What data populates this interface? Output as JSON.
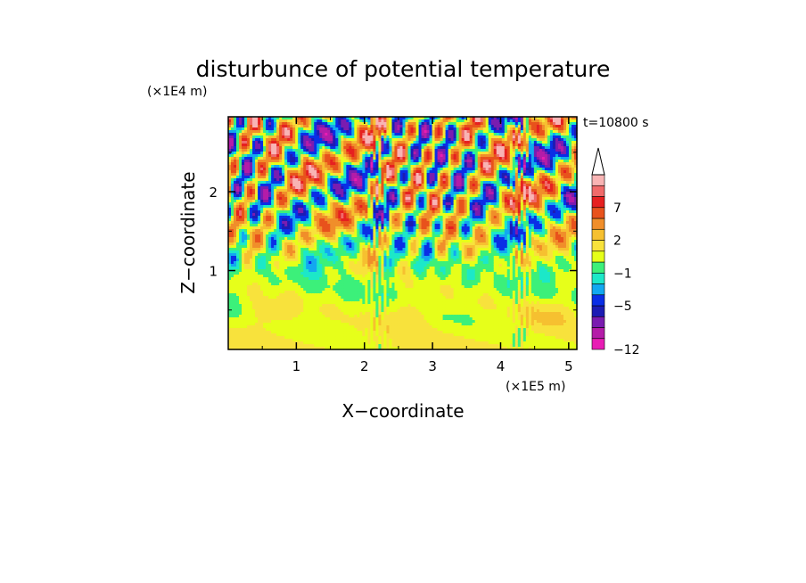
{
  "chart_data": {
    "type": "heatmap",
    "title": "disturbunce of potential temperature",
    "xlabel": "X−coordinate",
    "ylabel": "Z−coordinate",
    "x_scale_label": "(×1E5 m)",
    "y_scale_label": "(×1E4 m)",
    "time_label": "t=10800 s",
    "xlim": [
      0,
      5.12
    ],
    "ylim": [
      0,
      2.95
    ],
    "x_ticks": [
      {
        "value": 1,
        "label": "1"
      },
      {
        "value": 2,
        "label": "2"
      },
      {
        "value": 3,
        "label": "3"
      },
      {
        "value": 4,
        "label": "4"
      },
      {
        "value": 5,
        "label": "5"
      }
    ],
    "y_ticks": [
      {
        "value": 1,
        "label": "1"
      },
      {
        "value": 2,
        "label": "2"
      }
    ],
    "colorbar": {
      "levels": [
        {
          "lo": -12,
          "hi": -10,
          "color": "#e81cb4"
        },
        {
          "lo": -10,
          "hi": -8,
          "color": "#b41ca8"
        },
        {
          "lo": -8,
          "hi": -6,
          "color": "#7a1cb0"
        },
        {
          "lo": -6,
          "hi": -5,
          "color": "#1c1cb4"
        },
        {
          "lo": -5,
          "hi": -3,
          "color": "#0a2ee6"
        },
        {
          "lo": -3,
          "hi": -2,
          "color": "#12a8f0"
        },
        {
          "lo": -2,
          "hi": -1,
          "color": "#1ce8c8"
        },
        {
          "lo": -1,
          "hi": 0,
          "color": "#3cf07a"
        },
        {
          "lo": 0,
          "hi": 1,
          "color": "#e6ff1a"
        },
        {
          "lo": 1,
          "hi": 2,
          "color": "#f8e23c"
        },
        {
          "lo": 2,
          "hi": 3,
          "color": "#f6c030"
        },
        {
          "lo": 3,
          "hi": 5,
          "color": "#f08e2a"
        },
        {
          "lo": 5,
          "hi": 7,
          "color": "#e8521c"
        },
        {
          "lo": 7,
          "hi": 8,
          "color": "#e62020"
        },
        {
          "lo": 8,
          "hi": 9,
          "color": "#f06a6a"
        },
        {
          "lo": 9,
          "hi": 10,
          "color": "#f8b4b4"
        }
      ],
      "extend": "max",
      "tick_labels": [
        "7",
        "2",
        "−1",
        "−5",
        "−12"
      ]
    }
  }
}
